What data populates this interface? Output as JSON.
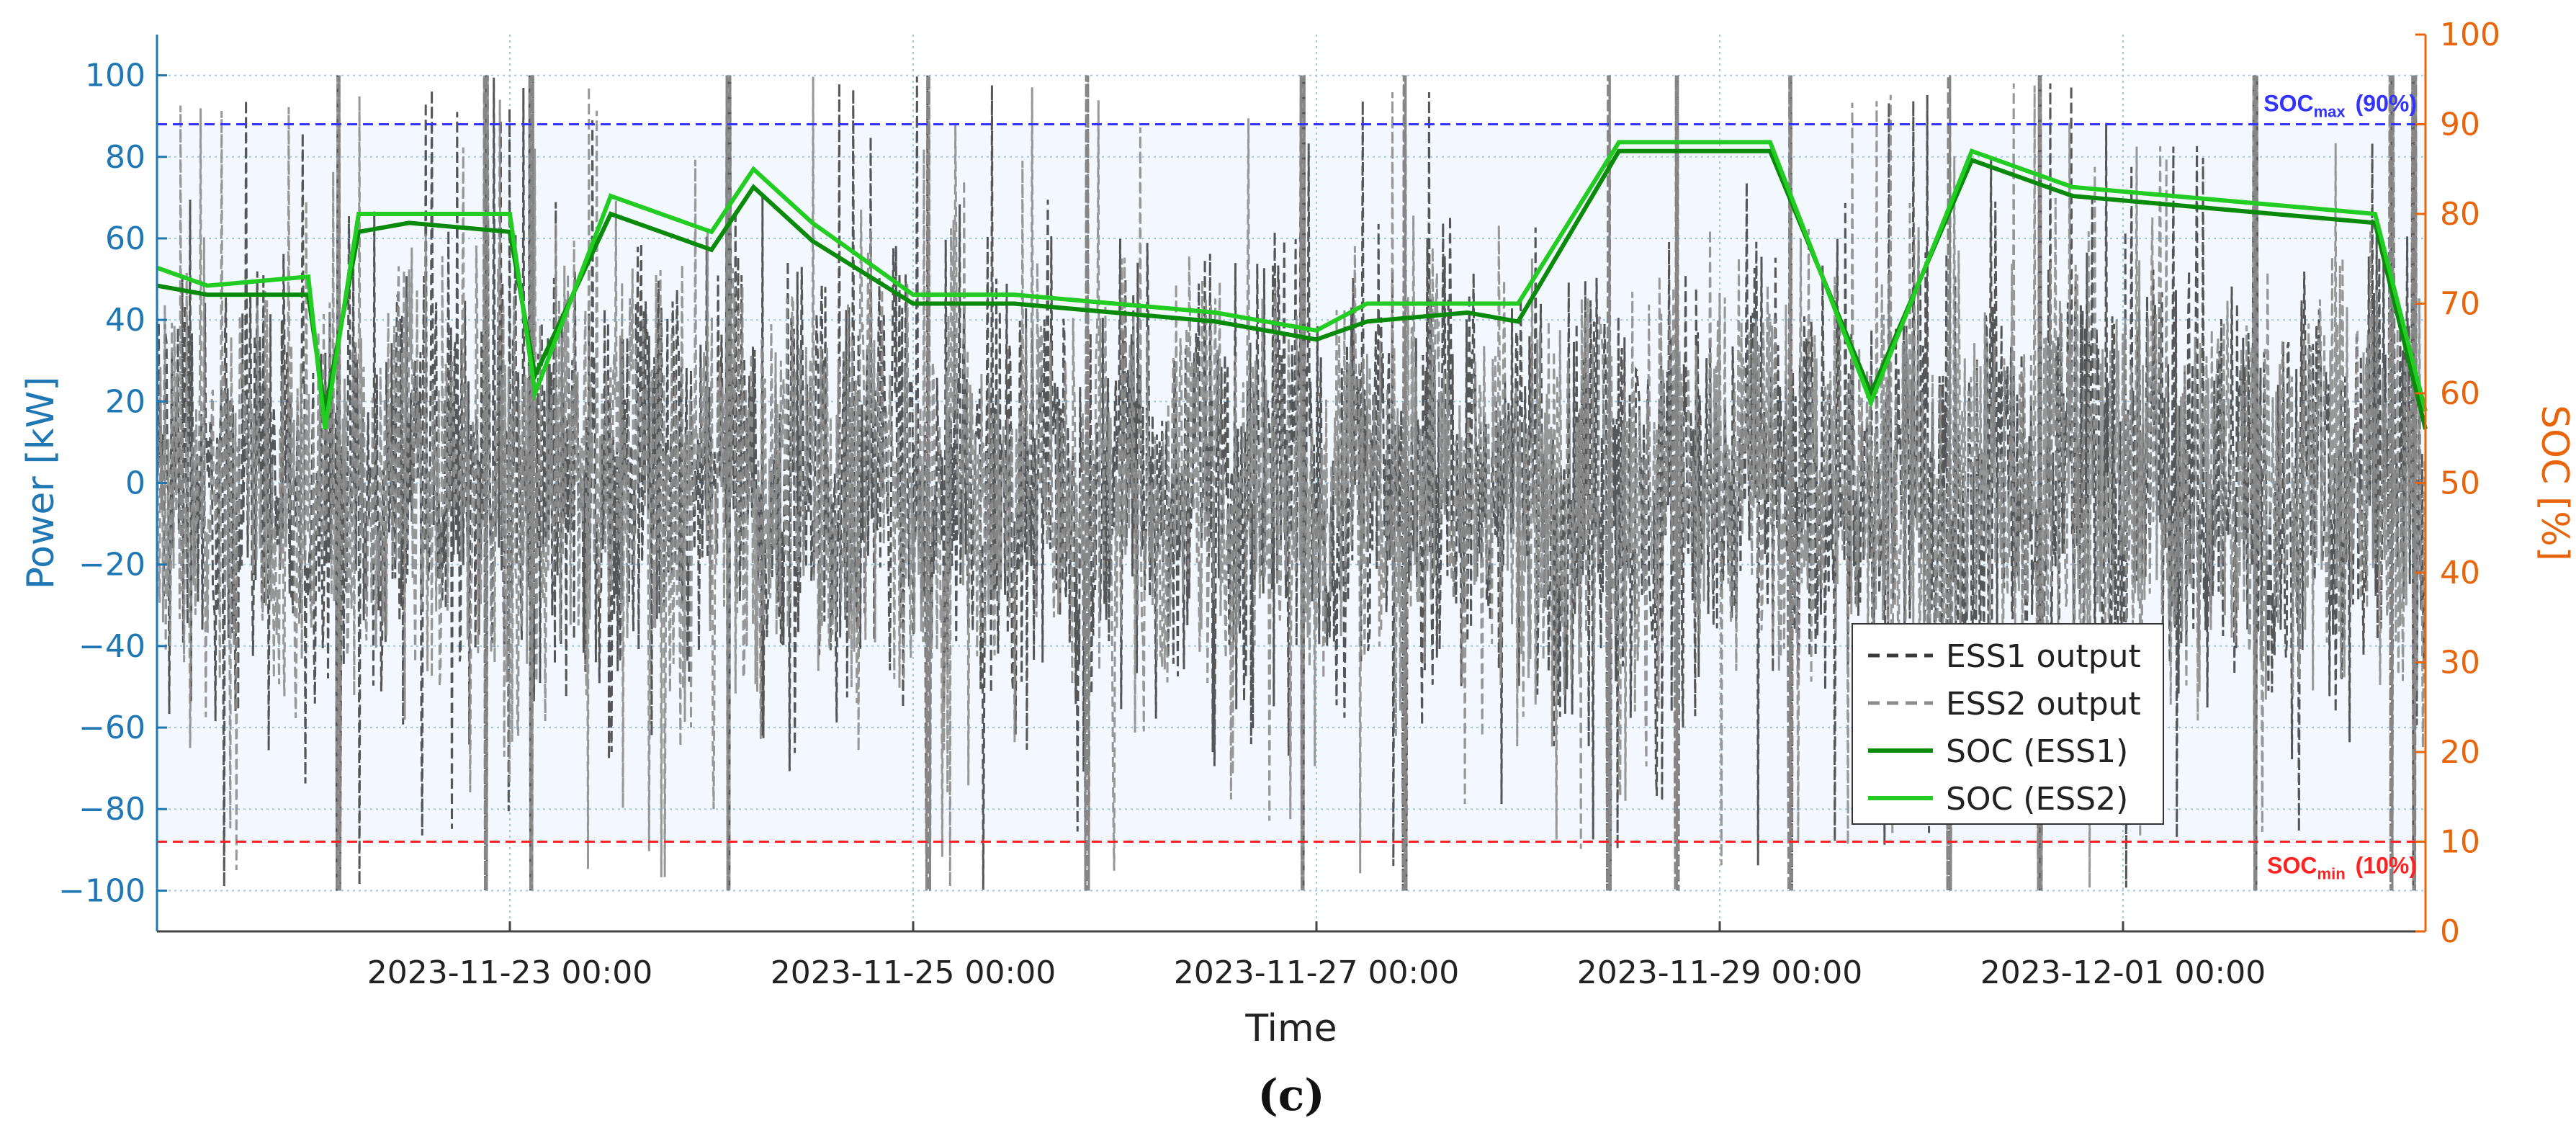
{
  "chart_data": {
    "type": "line",
    "xlabel": "Time",
    "ylabel_left": "Power [kW]",
    "ylabel_right": "SOC [%]",
    "panel_label": "(c)",
    "x_ticks": [
      "2023-11-23 00:00",
      "2023-11-25 00:00",
      "2023-11-27 00:00",
      "2023-11-29 00:00",
      "2023-12-01 00:00"
    ],
    "x_range": [
      "2023-11-21 06:00",
      "2023-12-02 12:00"
    ],
    "ylim_left": [
      -110,
      110
    ],
    "yticks_left": [
      -100,
      -80,
      -60,
      -40,
      -20,
      0,
      20,
      40,
      60,
      80,
      100
    ],
    "ylim_right": [
      0,
      100
    ],
    "yticks_right": [
      0,
      10,
      20,
      30,
      40,
      50,
      60,
      70,
      80,
      90,
      100
    ],
    "grid": true,
    "legend_position": "lower-right",
    "colors": {
      "left_axis": "#1f77b4",
      "right_axis": "#e8650c",
      "ess1_output": "#3a3a3a",
      "ess2_output": "#8c8c8c",
      "soc_ess1": "#0a8a0a",
      "soc_ess2": "#22cc22",
      "soc_max_line": "#3333ff",
      "soc_min_line": "#ff2222",
      "band_fill": "#f2f8fd"
    },
    "annotations": {
      "soc_max": {
        "main": "SOC",
        "sub": "max",
        "value": "(90%)",
        "level": 90
      },
      "soc_min": {
        "main": "SOC",
        "sub": "min",
        "value": "(10%)",
        "level": 10
      }
    },
    "series": [
      {
        "name": "ESS1 output",
        "axis": "left",
        "style": "dashed",
        "envelope_kw": [
          -100,
          100
        ],
        "typical_range_kw": [
          -45,
          45
        ]
      },
      {
        "name": "ESS2 output",
        "axis": "left",
        "style": "dashed",
        "envelope_kw": [
          -100,
          100
        ],
        "typical_range_kw": [
          -45,
          45
        ]
      },
      {
        "name": "SOC (ESS1)",
        "axis": "right",
        "style": "solid",
        "x": [
          "2023-11-21 06:00",
          "2023-11-21 12:00",
          "2023-11-22 00:00",
          "2023-11-22 02:00",
          "2023-11-22 06:00",
          "2023-11-22 12:00",
          "2023-11-23 00:00",
          "2023-11-23 03:00",
          "2023-11-23 12:00",
          "2023-11-24 00:00",
          "2023-11-24 05:00",
          "2023-11-24 12:00",
          "2023-11-25 00:00",
          "2023-11-25 12:00",
          "2023-11-26 00:00",
          "2023-11-26 12:00",
          "2023-11-27 00:00",
          "2023-11-27 06:00",
          "2023-11-27 18:00",
          "2023-11-28 00:00",
          "2023-11-28 12:00",
          "2023-11-29 00:00",
          "2023-11-29 06:00",
          "2023-11-29 18:00",
          "2023-11-30 06:00",
          "2023-11-30 18:00",
          "2023-12-01 06:00",
          "2023-12-01 18:00",
          "2023-12-02 06:00",
          "2023-12-02 12:00"
        ],
        "y": [
          72,
          71,
          71,
          58,
          78,
          79,
          78,
          62,
          80,
          76,
          83,
          77,
          70,
          70,
          69,
          68,
          66,
          68,
          69,
          68,
          87,
          87,
          87,
          60,
          86,
          82,
          81,
          80,
          79,
          56
        ]
      },
      {
        "name": "SOC (ESS2)",
        "axis": "right",
        "style": "solid",
        "x": [
          "2023-11-21 06:00",
          "2023-11-21 12:00",
          "2023-11-22 00:00",
          "2023-11-22 02:00",
          "2023-11-22 06:00",
          "2023-11-22 12:00",
          "2023-11-23 00:00",
          "2023-11-23 03:00",
          "2023-11-23 12:00",
          "2023-11-24 00:00",
          "2023-11-24 05:00",
          "2023-11-24 12:00",
          "2023-11-25 00:00",
          "2023-11-25 12:00",
          "2023-11-26 00:00",
          "2023-11-26 12:00",
          "2023-11-27 00:00",
          "2023-11-27 06:00",
          "2023-11-27 18:00",
          "2023-11-28 00:00",
          "2023-11-28 12:00",
          "2023-11-29 00:00",
          "2023-11-29 06:00",
          "2023-11-29 18:00",
          "2023-11-30 06:00",
          "2023-11-30 18:00",
          "2023-12-01 06:00",
          "2023-12-01 18:00",
          "2023-12-02 06:00",
          "2023-12-02 12:00"
        ],
        "y": [
          74,
          72,
          73,
          56,
          80,
          80,
          80,
          60,
          82,
          78,
          85,
          79,
          71,
          71,
          70,
          69,
          67,
          70,
          70,
          70,
          88,
          88,
          88,
          59,
          87,
          83,
          82,
          81,
          80,
          58
        ]
      }
    ],
    "legend": [
      "ESS1 output",
      "ESS2 output",
      "SOC (ESS1)",
      "SOC (ESS2)"
    ]
  }
}
